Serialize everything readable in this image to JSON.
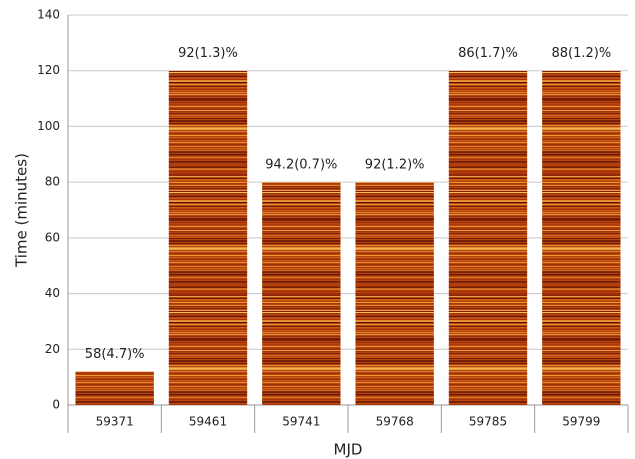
{
  "chart_data": {
    "type": "bar",
    "x_label": "MJD",
    "y_label": "Time (minutes)",
    "categories": [
      "59371",
      "59461",
      "59741",
      "59768",
      "59785",
      "59799"
    ],
    "values": [
      12,
      120,
      80,
      80,
      120,
      120
    ],
    "annotations": [
      "58(4.7)%",
      "92(1.3)%",
      "94.2(0.7)%",
      "92(1.2)%",
      "86(1.7)%",
      "88(1.2)%"
    ],
    "color": "#b8450f",
    "ylim": [
      0,
      140
    ],
    "yticks": [
      0,
      20,
      40,
      60,
      80,
      100,
      120,
      140
    ],
    "grid": true
  }
}
